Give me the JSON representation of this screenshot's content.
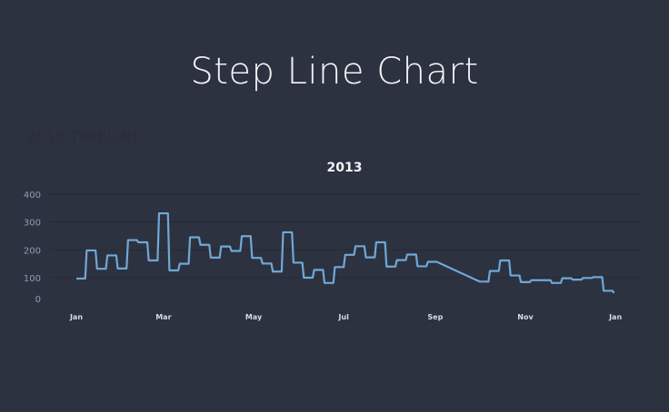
{
  "page": {
    "title": "Step Line Chart",
    "faint_label": "2013 TIMELINE"
  },
  "chart_data": {
    "type": "line",
    "line_shape": "step",
    "title": "2013",
    "xlabel": "",
    "ylabel": "",
    "ylim": [
      0,
      400
    ],
    "xlim": [
      "2013-01-01",
      "2014-01-01"
    ],
    "y_ticks": [
      0,
      100,
      200,
      300,
      400
    ],
    "x_ticks": [
      {
        "date": "2013-01-01",
        "label": "Jan"
      },
      {
        "date": "2013-03-01",
        "label": "Mar"
      },
      {
        "date": "2013-05-01",
        "label": "May"
      },
      {
        "date": "2013-07-01",
        "label": "Jul"
      },
      {
        "date": "2013-09-01",
        "label": "Sep"
      },
      {
        "date": "2013-11-01",
        "label": "Nov"
      },
      {
        "date": "2014-01-01",
        "label": "Jan"
      }
    ],
    "grid": true,
    "colors": {
      "line": "#6fa8d6",
      "grid": "#262a35",
      "background": "#2d3240"
    },
    "series": [
      {
        "points": [
          {
            "date": "2013-01-01",
            "value": 97
          },
          {
            "date": "2013-01-08",
            "value": 198
          },
          {
            "date": "2013-01-15",
            "value": 132
          },
          {
            "date": "2013-01-22",
            "value": 180
          },
          {
            "date": "2013-01-29",
            "value": 133
          },
          {
            "date": "2013-02-05",
            "value": 235
          },
          {
            "date": "2013-02-12",
            "value": 227
          },
          {
            "date": "2013-02-19",
            "value": 162
          },
          {
            "date": "2013-02-26",
            "value": 331
          },
          {
            "date": "2013-03-05",
            "value": 126
          },
          {
            "date": "2013-03-12",
            "value": 150
          },
          {
            "date": "2013-03-19",
            "value": 245
          },
          {
            "date": "2013-03-26",
            "value": 218
          },
          {
            "date": "2013-04-02",
            "value": 172
          },
          {
            "date": "2013-04-09",
            "value": 212
          },
          {
            "date": "2013-04-16",
            "value": 196
          },
          {
            "date": "2013-04-23",
            "value": 249
          },
          {
            "date": "2013-04-30",
            "value": 171
          },
          {
            "date": "2013-05-07",
            "value": 151
          },
          {
            "date": "2013-05-14",
            "value": 122
          },
          {
            "date": "2013-05-21",
            "value": 263
          },
          {
            "date": "2013-05-28",
            "value": 154
          },
          {
            "date": "2013-06-04",
            "value": 100
          },
          {
            "date": "2013-06-11",
            "value": 128
          },
          {
            "date": "2013-06-18",
            "value": 81
          },
          {
            "date": "2013-06-25",
            "value": 138
          },
          {
            "date": "2013-07-02",
            "value": 182
          },
          {
            "date": "2013-07-09",
            "value": 213
          },
          {
            "date": "2013-07-16",
            "value": 173
          },
          {
            "date": "2013-07-23",
            "value": 227
          },
          {
            "date": "2013-07-30",
            "value": 140
          },
          {
            "date": "2013-08-06",
            "value": 163
          },
          {
            "date": "2013-08-13",
            "value": 183
          },
          {
            "date": "2013-08-20",
            "value": 141
          },
          {
            "date": "2013-08-27",
            "value": 157
          },
          {
            "date": "2013-10-01",
            "value": 86
          },
          {
            "date": "2013-10-08",
            "value": 124
          },
          {
            "date": "2013-10-15",
            "value": 162
          },
          {
            "date": "2013-10-22",
            "value": 108
          },
          {
            "date": "2013-10-29",
            "value": 84
          },
          {
            "date": "2013-11-05",
            "value": 91
          },
          {
            "date": "2013-11-12",
            "value": 91
          },
          {
            "date": "2013-11-19",
            "value": 81
          },
          {
            "date": "2013-11-26",
            "value": 98
          },
          {
            "date": "2013-12-03",
            "value": 93
          },
          {
            "date": "2013-12-10",
            "value": 99
          },
          {
            "date": "2013-12-17",
            "value": 102
          },
          {
            "date": "2013-12-24",
            "value": 53
          },
          {
            "date": "2013-12-31",
            "value": 45
          }
        ]
      }
    ]
  }
}
